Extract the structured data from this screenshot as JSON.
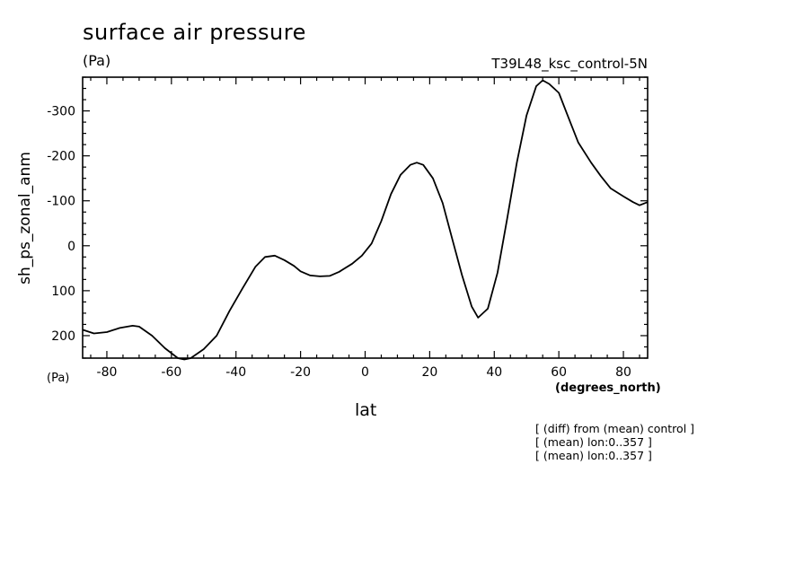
{
  "chart_data": {
    "type": "line",
    "title": "surface air pressure",
    "unit_label_top": "(Pa)",
    "unit_label_bottom": "(Pa)",
    "run_label": "T39L48_ksc_control-5N",
    "xlabel": "lat",
    "xunit": "(degrees_north)",
    "ylabel": "sh_ps_zonal_anm",
    "xlim": [
      -87.5,
      87.5
    ],
    "ylim": [
      250,
      -375
    ],
    "y_inverted": true,
    "xticks": [
      -80,
      -60,
      -40,
      -20,
      0,
      20,
      40,
      60,
      80
    ],
    "xtick_labels": [
      "-80",
      "-60",
      "-40",
      "-20",
      "0",
      "20",
      "40",
      "60",
      "80"
    ],
    "yticks": [
      -300,
      -200,
      -100,
      0,
      100,
      200
    ],
    "ytick_labels": [
      "-300",
      "-200",
      "-100",
      "0",
      "100",
      "200"
    ],
    "grid": false,
    "series": [
      {
        "color": "#000000",
        "x": [
          -87.5,
          -84,
          -80,
          -76,
          -72,
          -70,
          -66,
          -62,
          -58,
          -56,
          -54,
          -50,
          -46,
          -42,
          -38,
          -34,
          -31,
          -28,
          -25,
          -22,
          -20,
          -17,
          -14,
          -11,
          -8,
          -4,
          -1,
          2,
          5,
          8,
          11,
          14,
          16,
          18,
          21,
          24,
          27,
          30,
          33,
          35,
          38,
          41,
          44,
          47,
          50,
          53,
          55,
          57,
          60,
          63,
          66,
          70,
          73,
          76,
          80,
          83,
          85,
          87.5
        ],
        "y": [
          187,
          195,
          192,
          183,
          178,
          180,
          200,
          228,
          250,
          253,
          250,
          230,
          200,
          145,
          95,
          47,
          25,
          22,
          32,
          45,
          57,
          66,
          68,
          67,
          58,
          40,
          22,
          -5,
          -55,
          -115,
          -158,
          -180,
          -185,
          -180,
          -150,
          -95,
          -15,
          65,
          135,
          160,
          140,
          60,
          -60,
          -185,
          -290,
          -355,
          -368,
          -360,
          -340,
          -285,
          -230,
          -185,
          -155,
          -128,
          -110,
          -97,
          -90,
          -97
        ]
      }
    ]
  },
  "notes": [
    "[ (diff) from (mean) control ]",
    "[ (mean) lon:0..357 ]",
    "[ (mean) lon:0..357 ]"
  ]
}
